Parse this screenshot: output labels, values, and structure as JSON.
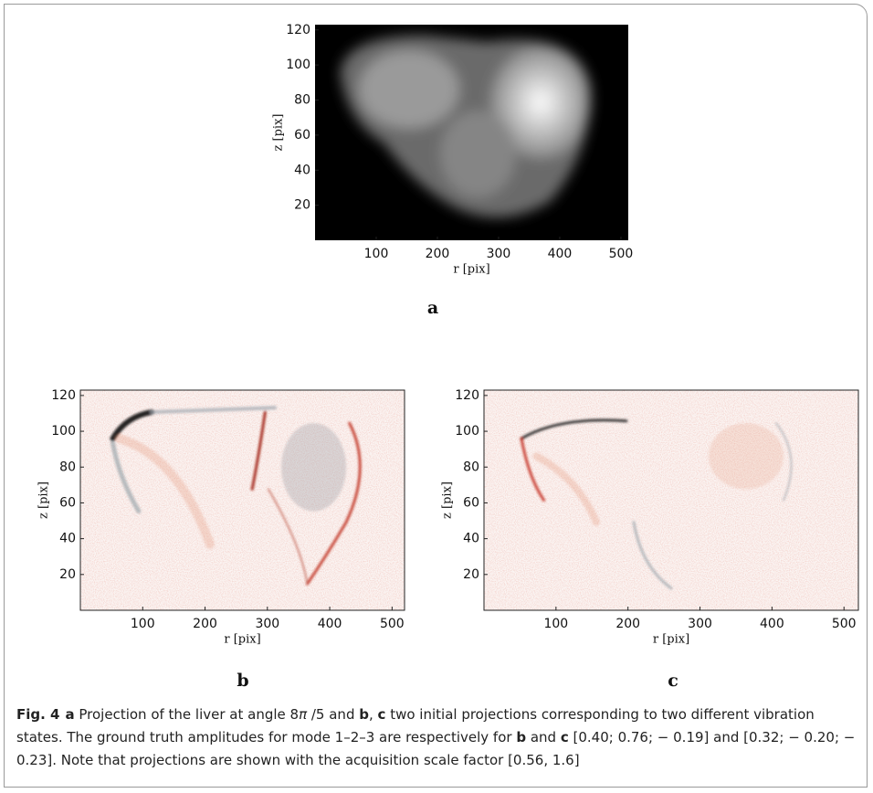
{
  "panels": [
    {
      "xlabel": "r [pix]",
      "ylabel": "z [pix]",
      "label": "a",
      "xlim": [
        0,
        512
      ],
      "ylim": [
        0,
        123
      ],
      "xticks": [
        100,
        200,
        300,
        400,
        500
      ],
      "yticks": [
        20,
        40,
        60,
        80,
        100,
        120
      ]
    },
    {
      "xlabel": "r [pix]",
      "ylabel": "z [pix]",
      "label": "b",
      "xlim": [
        0,
        520
      ],
      "ylim": [
        0,
        123
      ],
      "xticks": [
        100,
        200,
        300,
        400,
        500
      ],
      "yticks": [
        20,
        40,
        60,
        80,
        100,
        120
      ]
    },
    {
      "xlabel": "r [pix]",
      "ylabel": "z [pix]",
      "label": "c",
      "xlim": [
        0,
        520
      ],
      "ylim": [
        0,
        123
      ],
      "xticks": [
        100,
        200,
        300,
        400,
        500
      ],
      "yticks": [
        20,
        40,
        60,
        80,
        100,
        120
      ]
    }
  ],
  "caption": {
    "figure": "Fig. 4",
    "parts": [
      "a",
      " Projection of the liver at angle 8",
      "π",
      " /5 and ",
      "b",
      ", ",
      "c",
      " two initial projections corresponding to two different vibration states. The ground truth amplitudes for mode 1–2–3 are respectively for ",
      "b",
      " and ",
      "c",
      " [0.40; 0.76; − 0.19] and [0.32; − 0.20; − 0.23]. Note that projections are shown with the acquisition scale factor [0.56, 1.6]"
    ]
  }
}
